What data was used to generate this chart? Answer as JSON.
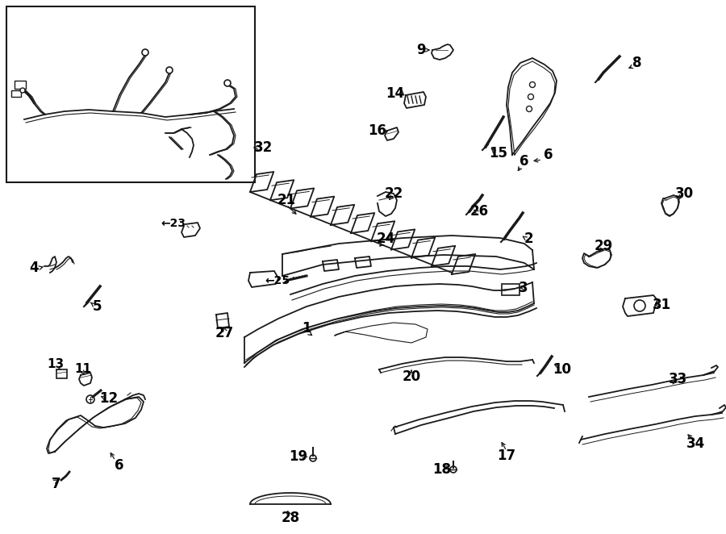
{
  "bg_color": "#ffffff",
  "lc": "#1a1a1a",
  "figsize": [
    9.0,
    6.62
  ],
  "dpi": 100
}
